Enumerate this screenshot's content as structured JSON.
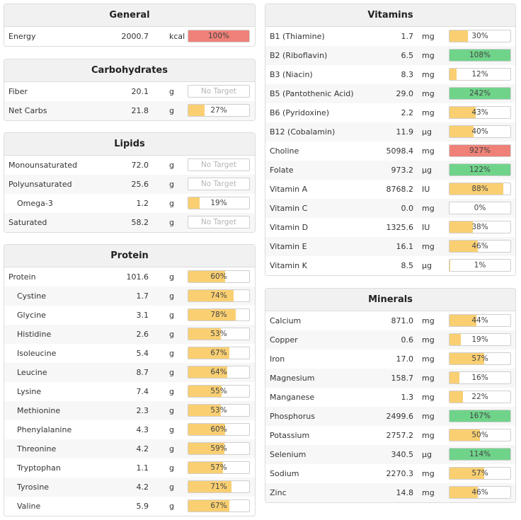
{
  "colors": {
    "yellow": "#f9cf72",
    "green": "#6fd48a",
    "red": "#ef8178"
  },
  "general": {
    "title": "General",
    "rows": [
      {
        "name": "Energy",
        "value": "2000.7",
        "unit": "kcal",
        "pct_label": "100%",
        "fill": 100,
        "color": "red"
      }
    ]
  },
  "carbs": {
    "title": "Carbohydrates",
    "rows": [
      {
        "name": "Fiber",
        "value": "20.1",
        "unit": "g",
        "pct_label": "No Target",
        "fill": 0,
        "color": "none"
      },
      {
        "name": "Net Carbs",
        "value": "21.8",
        "unit": "g",
        "pct_label": "27%",
        "fill": 27,
        "color": "yellow"
      }
    ]
  },
  "lipids": {
    "title": "Lipids",
    "rows": [
      {
        "name": "Monounsaturated",
        "value": "72.0",
        "unit": "g",
        "pct_label": "No Target",
        "fill": 0,
        "color": "none"
      },
      {
        "name": "Polyunsaturated",
        "value": "25.6",
        "unit": "g",
        "pct_label": "No Target",
        "fill": 0,
        "color": "none"
      },
      {
        "name": "Omega-3",
        "value": "1.2",
        "unit": "g",
        "pct_label": "19%",
        "fill": 19,
        "color": "yellow",
        "sub": true
      },
      {
        "name": "Saturated",
        "value": "58.2",
        "unit": "g",
        "pct_label": "No Target",
        "fill": 0,
        "color": "none"
      }
    ]
  },
  "protein": {
    "title": "Protein",
    "rows": [
      {
        "name": "Protein",
        "value": "101.6",
        "unit": "g",
        "pct_label": "60%",
        "fill": 60,
        "color": "yellow"
      },
      {
        "name": "Cystine",
        "value": "1.7",
        "unit": "g",
        "pct_label": "74%",
        "fill": 74,
        "color": "yellow",
        "sub": true
      },
      {
        "name": "Glycine",
        "value": "3.1",
        "unit": "g",
        "pct_label": "78%",
        "fill": 78,
        "color": "yellow",
        "sub": true
      },
      {
        "name": "Histidine",
        "value": "2.6",
        "unit": "g",
        "pct_label": "53%",
        "fill": 53,
        "color": "yellow",
        "sub": true
      },
      {
        "name": "Isoleucine",
        "value": "5.4",
        "unit": "g",
        "pct_label": "67%",
        "fill": 67,
        "color": "yellow",
        "sub": true
      },
      {
        "name": "Leucine",
        "value": "8.7",
        "unit": "g",
        "pct_label": "64%",
        "fill": 64,
        "color": "yellow",
        "sub": true
      },
      {
        "name": "Lysine",
        "value": "7.4",
        "unit": "g",
        "pct_label": "55%",
        "fill": 55,
        "color": "yellow",
        "sub": true
      },
      {
        "name": "Methionine",
        "value": "2.3",
        "unit": "g",
        "pct_label": "53%",
        "fill": 53,
        "color": "yellow",
        "sub": true
      },
      {
        "name": "Phenylalanine",
        "value": "4.3",
        "unit": "g",
        "pct_label": "60%",
        "fill": 60,
        "color": "yellow",
        "sub": true
      },
      {
        "name": "Threonine",
        "value": "4.2",
        "unit": "g",
        "pct_label": "59%",
        "fill": 59,
        "color": "yellow",
        "sub": true
      },
      {
        "name": "Tryptophan",
        "value": "1.1",
        "unit": "g",
        "pct_label": "57%",
        "fill": 57,
        "color": "yellow",
        "sub": true
      },
      {
        "name": "Tyrosine",
        "value": "4.2",
        "unit": "g",
        "pct_label": "71%",
        "fill": 71,
        "color": "yellow",
        "sub": true
      },
      {
        "name": "Valine",
        "value": "5.9",
        "unit": "g",
        "pct_label": "67%",
        "fill": 67,
        "color": "yellow",
        "sub": true
      }
    ]
  },
  "vitamins": {
    "title": "Vitamins",
    "rows": [
      {
        "name": "B1 (Thiamine)",
        "value": "1.7",
        "unit": "mg",
        "pct_label": "30%",
        "fill": 30,
        "color": "yellow"
      },
      {
        "name": "B2 (Riboflavin)",
        "value": "6.5",
        "unit": "mg",
        "pct_label": "108%",
        "fill": 100,
        "color": "green"
      },
      {
        "name": "B3 (Niacin)",
        "value": "8.3",
        "unit": "mg",
        "pct_label": "12%",
        "fill": 12,
        "color": "yellow"
      },
      {
        "name": "B5 (Pantothenic Acid)",
        "value": "29.0",
        "unit": "mg",
        "pct_label": "242%",
        "fill": 100,
        "color": "green"
      },
      {
        "name": "B6 (Pyridoxine)",
        "value": "2.2",
        "unit": "mg",
        "pct_label": "43%",
        "fill": 43,
        "color": "yellow"
      },
      {
        "name": "B12 (Cobalamin)",
        "value": "11.9",
        "unit": "µg",
        "pct_label": "40%",
        "fill": 40,
        "color": "yellow"
      },
      {
        "name": "Choline",
        "value": "5098.4",
        "unit": "mg",
        "pct_label": "927%",
        "fill": 100,
        "color": "red"
      },
      {
        "name": "Folate",
        "value": "973.2",
        "unit": "µg",
        "pct_label": "122%",
        "fill": 100,
        "color": "green"
      },
      {
        "name": "Vitamin A",
        "value": "8768.2",
        "unit": "IU",
        "pct_label": "88%",
        "fill": 88,
        "color": "yellow"
      },
      {
        "name": "Vitamin C",
        "value": "0.0",
        "unit": "mg",
        "pct_label": "0%",
        "fill": 0,
        "color": "yellow"
      },
      {
        "name": "Vitamin D",
        "value": "1325.6",
        "unit": "IU",
        "pct_label": "38%",
        "fill": 38,
        "color": "yellow"
      },
      {
        "name": "Vitamin E",
        "value": "16.1",
        "unit": "mg",
        "pct_label": "46%",
        "fill": 46,
        "color": "yellow"
      },
      {
        "name": "Vitamin K",
        "value": "8.5",
        "unit": "µg",
        "pct_label": "1%",
        "fill": 1,
        "color": "yellow"
      }
    ]
  },
  "minerals": {
    "title": "Minerals",
    "rows": [
      {
        "name": "Calcium",
        "value": "871.0",
        "unit": "mg",
        "pct_label": "44%",
        "fill": 44,
        "color": "yellow"
      },
      {
        "name": "Copper",
        "value": "0.6",
        "unit": "mg",
        "pct_label": "19%",
        "fill": 19,
        "color": "yellow"
      },
      {
        "name": "Iron",
        "value": "17.0",
        "unit": "mg",
        "pct_label": "57%",
        "fill": 57,
        "color": "yellow"
      },
      {
        "name": "Magnesium",
        "value": "158.7",
        "unit": "mg",
        "pct_label": "16%",
        "fill": 16,
        "color": "yellow"
      },
      {
        "name": "Manganese",
        "value": "1.3",
        "unit": "mg",
        "pct_label": "22%",
        "fill": 22,
        "color": "yellow"
      },
      {
        "name": "Phosphorus",
        "value": "2499.6",
        "unit": "mg",
        "pct_label": "167%",
        "fill": 100,
        "color": "green"
      },
      {
        "name": "Potassium",
        "value": "2757.2",
        "unit": "mg",
        "pct_label": "50%",
        "fill": 50,
        "color": "yellow"
      },
      {
        "name": "Selenium",
        "value": "340.5",
        "unit": "µg",
        "pct_label": "114%",
        "fill": 100,
        "color": "green"
      },
      {
        "name": "Sodium",
        "value": "2270.3",
        "unit": "mg",
        "pct_label": "57%",
        "fill": 57,
        "color": "yellow"
      },
      {
        "name": "Zinc",
        "value": "14.8",
        "unit": "mg",
        "pct_label": "46%",
        "fill": 46,
        "color": "yellow"
      }
    ]
  }
}
